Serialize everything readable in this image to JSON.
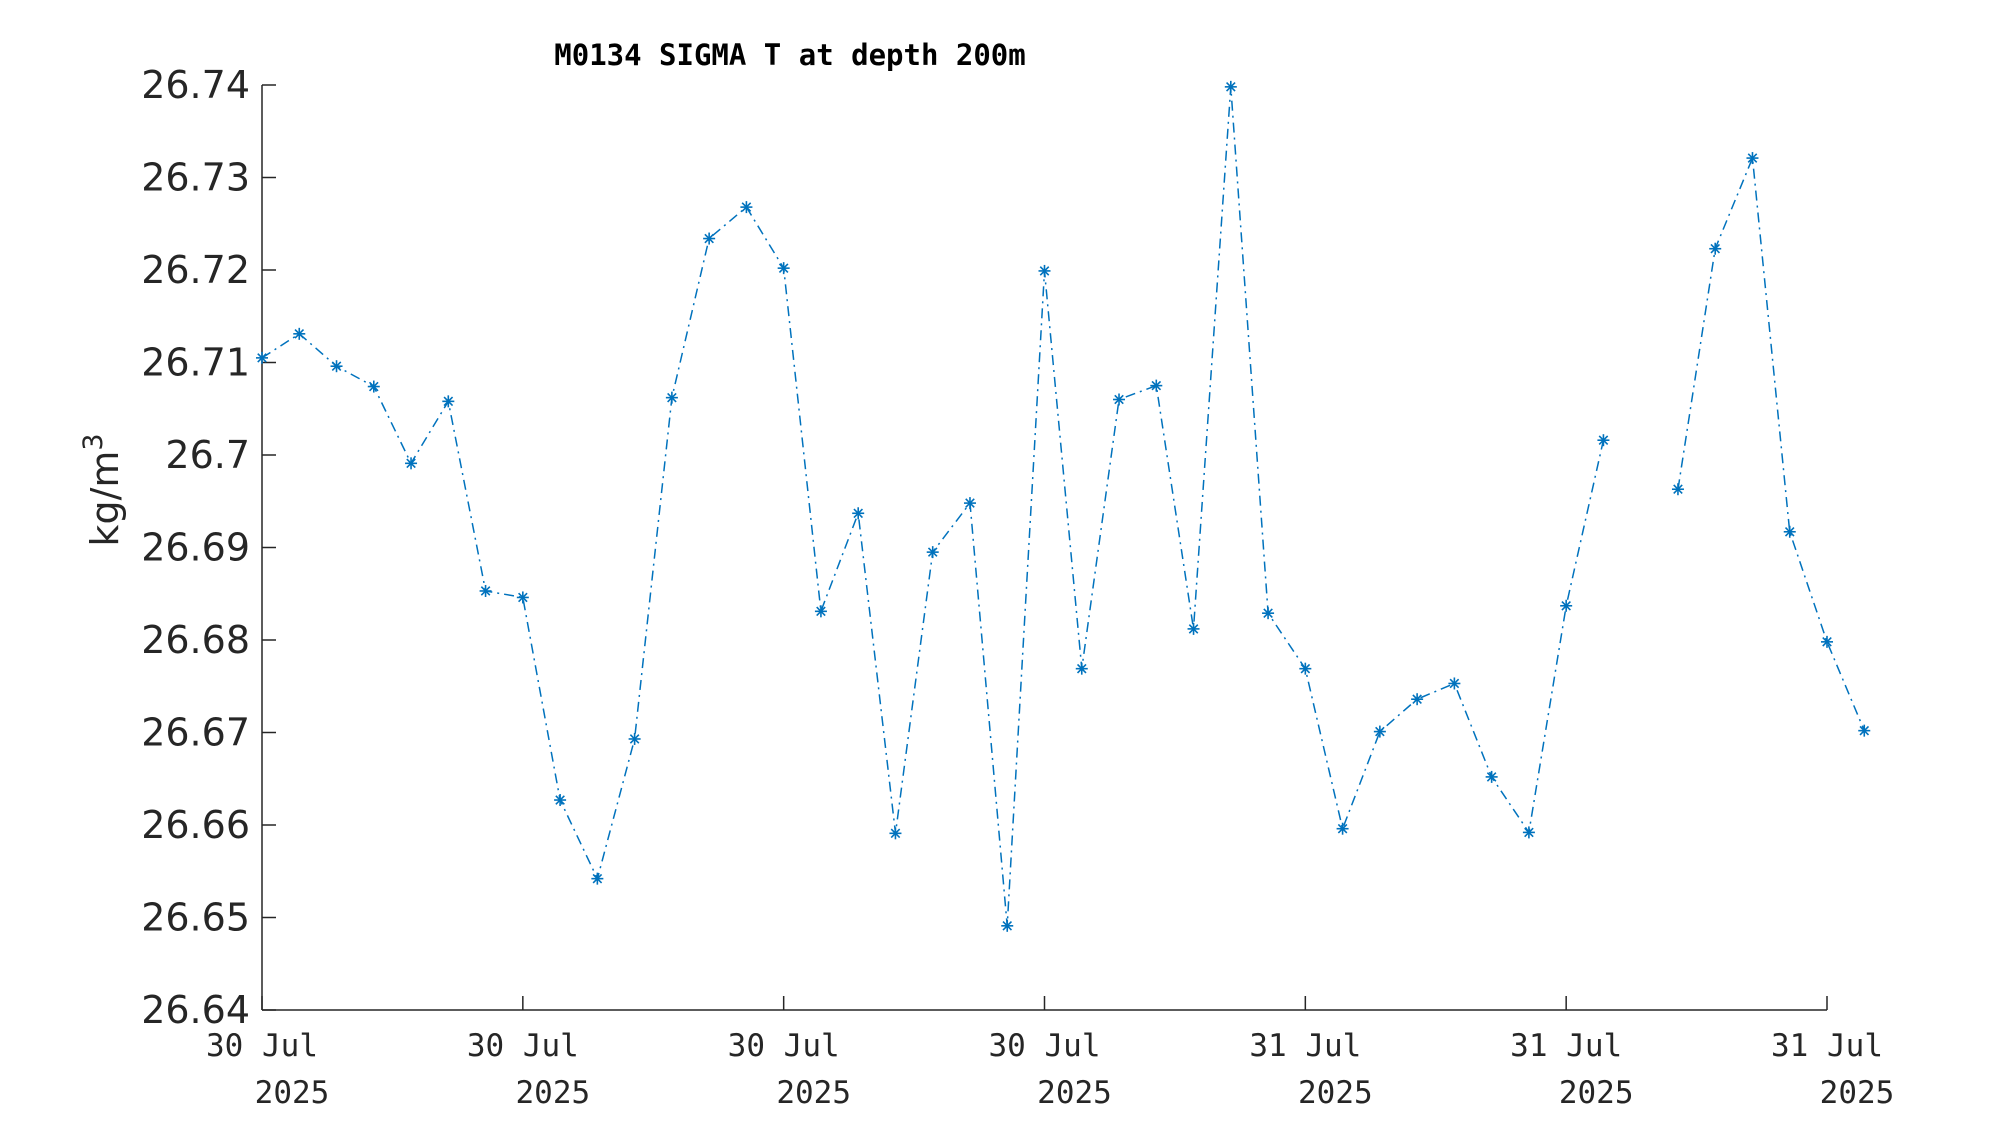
{
  "chart_data": {
    "type": "line",
    "title": "M0134 SIGMA T at depth 200m",
    "ylabel": "kg/m",
    "ylabel_superscript": "3",
    "xlabel": "",
    "ylim": [
      26.64,
      26.74
    ],
    "yticks": [
      "26.64",
      "26.65",
      "26.66",
      "26.67",
      "26.68",
      "26.69",
      "26.7",
      "26.71",
      "26.72",
      "26.73",
      "26.74"
    ],
    "xlim": [
      0,
      42
    ],
    "xticks": [
      {
        "index": 0,
        "line1": "30 Jul",
        "line2": "2025"
      },
      {
        "index": 7,
        "line1": "30 Jul",
        "line2": "2025"
      },
      {
        "index": 14,
        "line1": "30 Jul",
        "line2": "2025"
      },
      {
        "index": 21,
        "line1": "30 Jul",
        "line2": "2025"
      },
      {
        "index": 28,
        "line1": "31 Jul",
        "line2": "2025"
      },
      {
        "index": 35,
        "line1": "31 Jul",
        "line2": "2025"
      },
      {
        "index": 42,
        "line1": "31 Jul",
        "line2": "2025"
      }
    ],
    "grid": false,
    "color": "#0072bd",
    "marker": "asterisk",
    "line_style": "dash-dot",
    "series": [
      {
        "values": [
          26.7105,
          26.7131,
          26.7096,
          26.7074,
          26.6991,
          26.7058,
          26.6853,
          26.6846,
          26.6627,
          26.6542,
          26.6693,
          26.7062,
          26.7234,
          26.7268,
          26.7202,
          26.6831,
          26.6937,
          26.6591,
          26.6895,
          26.6948,
          26.6491,
          26.7199,
          26.6769,
          26.706,
          26.7075,
          26.6812,
          26.7398,
          26.6829,
          26.6769,
          26.6596,
          26.6701,
          26.6736,
          26.6753,
          26.6652,
          26.6592,
          26.6837,
          26.7016,
          null,
          26.6963,
          26.7223,
          26.7321,
          26.6917,
          26.6798,
          26.6702
        ]
      }
    ]
  }
}
